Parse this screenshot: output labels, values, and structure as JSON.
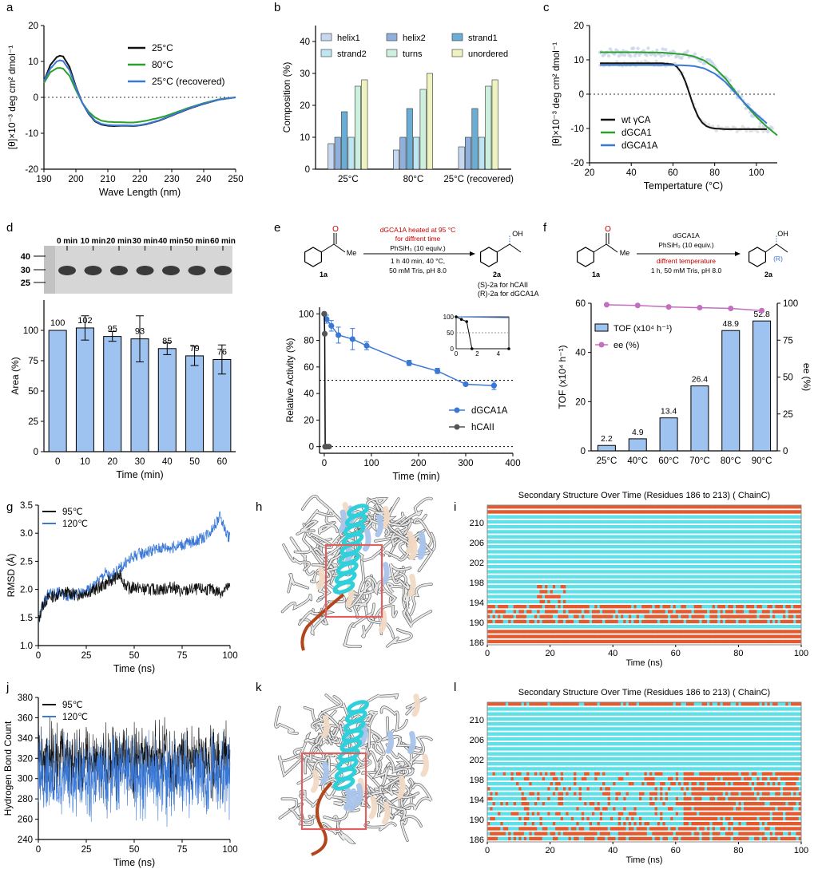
{
  "panel_letters": [
    "a",
    "b",
    "c",
    "d",
    "e",
    "f",
    "g",
    "h",
    "i",
    "j",
    "k",
    "l"
  ],
  "colors": {
    "black": "#111111",
    "green": "#2ca02c",
    "blue": "#3a78d6",
    "bar_fill": "#9ec3f0",
    "hcaii_gray": "#555555",
    "pink": "#c36fbf",
    "cyan": "#5ee0e8",
    "orange": "#e25a2e",
    "red_label": "#cc0000"
  },
  "chart_data": [
    {
      "id": "a",
      "type": "line",
      "xlabel": "Wave Length (nm)",
      "ylabel": "[θ]×10⁻³ deg cm² dmol⁻¹",
      "xlim": [
        190,
        250
      ],
      "ylim": [
        -20,
        20
      ],
      "xticks": [
        190,
        200,
        210,
        220,
        230,
        240,
        250
      ],
      "yticks": [
        -20,
        -10,
        0,
        10,
        20
      ],
      "legend": "top-right",
      "series": [
        {
          "name": "25°C",
          "color": "#111111",
          "x": [
            190,
            192,
            194,
            195,
            196,
            198,
            200,
            202,
            204,
            206,
            208,
            210,
            212,
            214,
            216,
            218,
            220,
            222,
            224,
            226,
            228,
            230,
            235,
            240,
            245,
            250
          ],
          "y": [
            4.5,
            9,
            11.2,
            11.6,
            11.4,
            8.5,
            3,
            -1.5,
            -4.6,
            -6.7,
            -7.6,
            -7.9,
            -8,
            -7.9,
            -7.9,
            -8,
            -7.8,
            -7.5,
            -7,
            -6.5,
            -5.8,
            -5.1,
            -3.3,
            -1.8,
            -0.6,
            0
          ]
        },
        {
          "name": "80°C",
          "color": "#2ca02c",
          "x": [
            190,
            192,
            194,
            195,
            196,
            198,
            200,
            202,
            204,
            206,
            208,
            210,
            212,
            214,
            216,
            218,
            220,
            222,
            224,
            226,
            228,
            230,
            235,
            240,
            245,
            250
          ],
          "y": [
            4,
            7,
            8.1,
            8.2,
            8,
            6,
            2,
            -1.5,
            -4,
            -5.6,
            -6.5,
            -6.8,
            -6.9,
            -6.9,
            -7,
            -7,
            -6.8,
            -6.5,
            -6.1,
            -5.7,
            -5.2,
            -4.6,
            -3,
            -1.6,
            -0.5,
            0
          ]
        },
        {
          "name": "25°C (recovered)",
          "color": "#3a78d6",
          "x": [
            190,
            192,
            194,
            195,
            196,
            198,
            200,
            202,
            204,
            206,
            208,
            210,
            212,
            214,
            216,
            218,
            220,
            222,
            224,
            226,
            228,
            230,
            235,
            240,
            245,
            250
          ],
          "y": [
            4.5,
            8,
            10,
            10.3,
            10.1,
            7.6,
            2.7,
            -1.5,
            -4.4,
            -6.5,
            -7.4,
            -7.7,
            -7.8,
            -7.8,
            -7.8,
            -7.9,
            -7.7,
            -7.4,
            -6.9,
            -6.4,
            -5.7,
            -5,
            -3.2,
            -1.7,
            -0.6,
            0
          ]
        }
      ]
    },
    {
      "id": "b",
      "type": "bar",
      "ylabel": "Composition (%)",
      "ylim": [
        0,
        45
      ],
      "yticks": [
        0,
        10,
        20,
        30,
        40
      ],
      "categories": [
        "25°C",
        "80°C",
        "25°C (recovered)"
      ],
      "legend": "top",
      "series": [
        {
          "name": "helix1",
          "color": "#c5d8f0",
          "values": [
            8,
            6,
            7
          ]
        },
        {
          "name": "helix2",
          "color": "#8fb0dd",
          "values": [
            10,
            10,
            10
          ]
        },
        {
          "name": "strand1",
          "color": "#6aaed6",
          "values": [
            18,
            19,
            19
          ]
        },
        {
          "name": "strand2",
          "color": "#bde5f2",
          "values": [
            10,
            10,
            10
          ]
        },
        {
          "name": "turns",
          "color": "#cdf0de",
          "values": [
            26,
            25,
            26
          ]
        },
        {
          "name": "unordered",
          "color": "#eef3c0",
          "values": [
            28,
            30,
            28
          ]
        }
      ]
    },
    {
      "id": "c",
      "type": "line",
      "xlabel": "Tempertature (°C)",
      "ylabel": "[θ]×10⁻³ deg cm² dmol⁻¹",
      "xlim": [
        20,
        110
      ],
      "ylim": [
        -20,
        20
      ],
      "xticks": [
        20,
        40,
        60,
        80,
        100
      ],
      "yticks": [
        -20,
        -10,
        0,
        10,
        20
      ],
      "legend": "bottom-left",
      "series": [
        {
          "name": "wt γCA",
          "color": "#111111",
          "x": [
            25,
            30,
            35,
            40,
            45,
            50,
            55,
            60,
            62,
            64,
            66,
            68,
            70,
            72,
            74,
            76,
            78,
            80,
            85,
            90,
            95,
            100,
            105
          ],
          "y": [
            9,
            9,
            9,
            9,
            9,
            9,
            9,
            8.7,
            7.9,
            6.3,
            3.6,
            0,
            -3.7,
            -6.5,
            -8.3,
            -9.3,
            -9.8,
            -10,
            -10.2,
            -10.2,
            -10.2,
            -10.2,
            -10.2
          ]
        },
        {
          "name": "dGCA1",
          "color": "#2ca02c",
          "x": [
            25,
            35,
            45,
            55,
            65,
            70,
            75,
            80,
            85,
            90,
            95,
            100,
            105,
            110
          ],
          "y": [
            12.2,
            12.2,
            12.2,
            12.1,
            11.6,
            11,
            9.8,
            7.7,
            4.7,
            0.7,
            -3.2,
            -6.6,
            -9.5,
            -12
          ]
        },
        {
          "name": "dGCA1A",
          "color": "#3a78d6",
          "x": [
            25,
            35,
            45,
            55,
            65,
            70,
            75,
            80,
            85,
            90,
            95,
            100,
            105
          ],
          "y": [
            8.5,
            8.5,
            8.5,
            8.5,
            8.4,
            8.2,
            7.5,
            6,
            3.6,
            0.3,
            -3,
            -5.9,
            -8.5
          ]
        }
      ],
      "scatter_color": "#c8d4ec"
    },
    {
      "id": "d",
      "type": "bar",
      "xlabel": "Time (min)",
      "ylabel": "Area (%)",
      "ylim": [
        0,
        125
      ],
      "yticks": [
        0,
        25,
        50,
        75,
        100
      ],
      "categories": [
        "0",
        "10",
        "20",
        "30",
        "40",
        "50",
        "60"
      ],
      "values": [
        100,
        102,
        95,
        93,
        85,
        79,
        76
      ],
      "errors": [
        0,
        10,
        4,
        19,
        5,
        8,
        12
      ],
      "data_labels": [
        "100",
        "102",
        "95",
        "93",
        "85",
        "79",
        "76"
      ],
      "gel_lanes": [
        "0 min",
        "10 min",
        "20 min",
        "30 min",
        "40 min",
        "50 min",
        "60 min"
      ],
      "gel_markers": [
        "40",
        "30",
        "25"
      ]
    },
    {
      "id": "e",
      "type": "line",
      "xlabel": "Time (min)",
      "ylabel": "Relative Activity (%)",
      "xlim": [
        -10,
        400
      ],
      "ylim": [
        -5,
        105
      ],
      "xticks": [
        0,
        100,
        200,
        300,
        400
      ],
      "yticks": [
        0,
        20,
        40,
        60,
        80,
        100
      ],
      "legend": "bottom-right",
      "series": [
        {
          "name": "dGCA1A",
          "color": "#3a78d6",
          "x": [
            0,
            5,
            15,
            30,
            60,
            90,
            180,
            240,
            300,
            360
          ],
          "y": [
            100,
            96,
            91,
            84,
            81,
            76,
            63,
            57,
            47,
            46
          ],
          "err": [
            0,
            3,
            4,
            6,
            8,
            3,
            2,
            2,
            1,
            3
          ]
        },
        {
          "name": "hCAII",
          "color": "#555555",
          "x": [
            0,
            1,
            2,
            3,
            5,
            10
          ],
          "y": [
            100,
            85,
            0,
            0,
            0,
            0
          ]
        }
      ],
      "reference_lines": [
        50,
        0
      ],
      "inset": {
        "xticks": [
          0,
          2,
          4
        ],
        "yticks": [
          0,
          50,
          100
        ],
        "blue": {
          "x": [
            0,
            5
          ],
          "y": [
            100,
            97
          ]
        },
        "black": {
          "x": [
            0,
            0.5,
            1,
            1.5,
            5
          ],
          "y": [
            100,
            92,
            85,
            0,
            0
          ]
        }
      },
      "scheme": {
        "condition1": "dGCA1A heated at 95 °C",
        "condition2": "for diffrent time",
        "reagent": "PhSiH₃ (10 equiv.)",
        "condition3": "1 h 40 min, 40 °C,",
        "condition4": "50 mM Tris, pH 8.0",
        "substrate": "1a",
        "product1": "(S)-2a for hCAII",
        "product2": "(R)-2a for dGCA1A",
        "oh": "OH",
        "me": "Me",
        "o": "O"
      }
    },
    {
      "id": "f",
      "type": "bar",
      "ylabel": "TOF (x10⁴ h⁻¹)",
      "ylabel_right": "ee (%)",
      "ylim": [
        0,
        60
      ],
      "yticks": [
        0,
        20,
        40,
        60
      ],
      "ylim_right": [
        0,
        100
      ],
      "yticks_right": [
        0,
        25,
        50,
        75,
        100
      ],
      "categories": [
        "25°C",
        "40°C",
        "60°C",
        "70°C",
        "80°C",
        "90°C"
      ],
      "series": [
        {
          "name": "TOF (x10⁴ h⁻¹)",
          "values": [
            2.2,
            4.9,
            13.4,
            26.4,
            48.9,
            52.8
          ]
        },
        {
          "name": "ee (%)",
          "values": [
            99,
            98.5,
            97.5,
            97,
            96.5,
            95
          ]
        }
      ],
      "data_labels": [
        "2.2",
        "4.9",
        "13.4",
        "26.4",
        "48.9",
        "52.8"
      ],
      "legend": "top-left",
      "scheme": {
        "enzyme": "dGCA1A",
        "reagent": "PhSiH₃ (10 equiv.)",
        "condition_red": "diffrent temperature",
        "condition": "1 h, 50 mM Tris, pH 8.0",
        "substrate": "1a",
        "product": "2a",
        "r_label": "(R)",
        "oh": "OH",
        "me": "Me",
        "o": "O"
      }
    },
    {
      "id": "g",
      "type": "line",
      "xlabel": "Time (ns)",
      "ylabel": "RMSD (Å)",
      "xlim": [
        0,
        100
      ],
      "ylim": [
        1.0,
        3.5
      ],
      "xticks": [
        0,
        25,
        50,
        75,
        100
      ],
      "yticks": [
        1.0,
        1.5,
        2.0,
        2.5,
        3.0,
        3.5
      ],
      "legend": "top-left",
      "series": [
        {
          "name": "95℃",
          "color": "#111111",
          "x": [
            0,
            2,
            5,
            10,
            15,
            20,
            25,
            30,
            35,
            40,
            43,
            45,
            48,
            50,
            55,
            60,
            65,
            70,
            75,
            80,
            85,
            90,
            95,
            100
          ],
          "y": [
            1.4,
            1.7,
            1.85,
            1.9,
            1.95,
            1.9,
            1.95,
            2.0,
            2.1,
            2.2,
            2.25,
            2.1,
            2.0,
            2.05,
            2.0,
            2.0,
            2.0,
            2.05,
            1.95,
            2.0,
            2.0,
            2.0,
            1.95,
            2.05
          ]
        },
        {
          "name": "120℃",
          "color": "#3a78d6",
          "x": [
            0,
            2,
            5,
            10,
            15,
            20,
            25,
            30,
            35,
            38,
            40,
            45,
            50,
            55,
            60,
            65,
            70,
            75,
            80,
            85,
            90,
            93,
            95,
            98,
            100
          ],
          "y": [
            1.4,
            1.7,
            1.9,
            1.95,
            1.9,
            1.9,
            1.95,
            2.1,
            2.3,
            2.2,
            2.3,
            2.45,
            2.6,
            2.65,
            2.7,
            2.75,
            2.75,
            2.8,
            2.85,
            2.9,
            3.05,
            3.2,
            3.3,
            3.0,
            2.9
          ]
        }
      ]
    },
    {
      "id": "h",
      "type": "line",
      "xlabel": "Time (ns)",
      "ylabel": "Hydrogen Bond Count",
      "xlim": [
        0,
        100
      ],
      "ylim": [
        240,
        380
      ],
      "xticks": [
        0,
        25,
        50,
        75,
        100
      ],
      "yticks": [
        240,
        260,
        280,
        300,
        320,
        340,
        360,
        380
      ],
      "legend": "top-left",
      "series": [
        {
          "name": "95℃",
          "color": "#111111",
          "mean": 318,
          "range": [
            290,
            350
          ]
        },
        {
          "name": "120℃",
          "color": "#3a78d6",
          "mean": 302,
          "range": [
            265,
            335
          ]
        }
      ]
    },
    {
      "id": "k",
      "type": "heatmap",
      "title": "Secondary Structure Over Time (Residues 186 to 213) ( ChainC)",
      "xlabel": "Time (ns)",
      "xlim": [
        0,
        100
      ],
      "xticks": [
        0,
        20,
        40,
        60,
        80,
        100
      ],
      "yticks": [
        186,
        190,
        194,
        198,
        202,
        206,
        210
      ],
      "residue_range": [
        186,
        213
      ],
      "colors": [
        "#5ee0e8",
        "#e25a2e"
      ]
    },
    {
      "id": "l",
      "type": "heatmap",
      "title": "Secondary Structure Over Time (Residues 186 to 213) ( ChainC)",
      "xlabel": "Time (ns)",
      "xlim": [
        0,
        100
      ],
      "xticks": [
        0,
        20,
        40,
        60,
        80,
        100
      ],
      "yticks": [
        186,
        190,
        194,
        198,
        202,
        206,
        210
      ],
      "residue_range": [
        186,
        213
      ],
      "colors": [
        "#5ee0e8",
        "#e25a2e"
      ]
    }
  ]
}
